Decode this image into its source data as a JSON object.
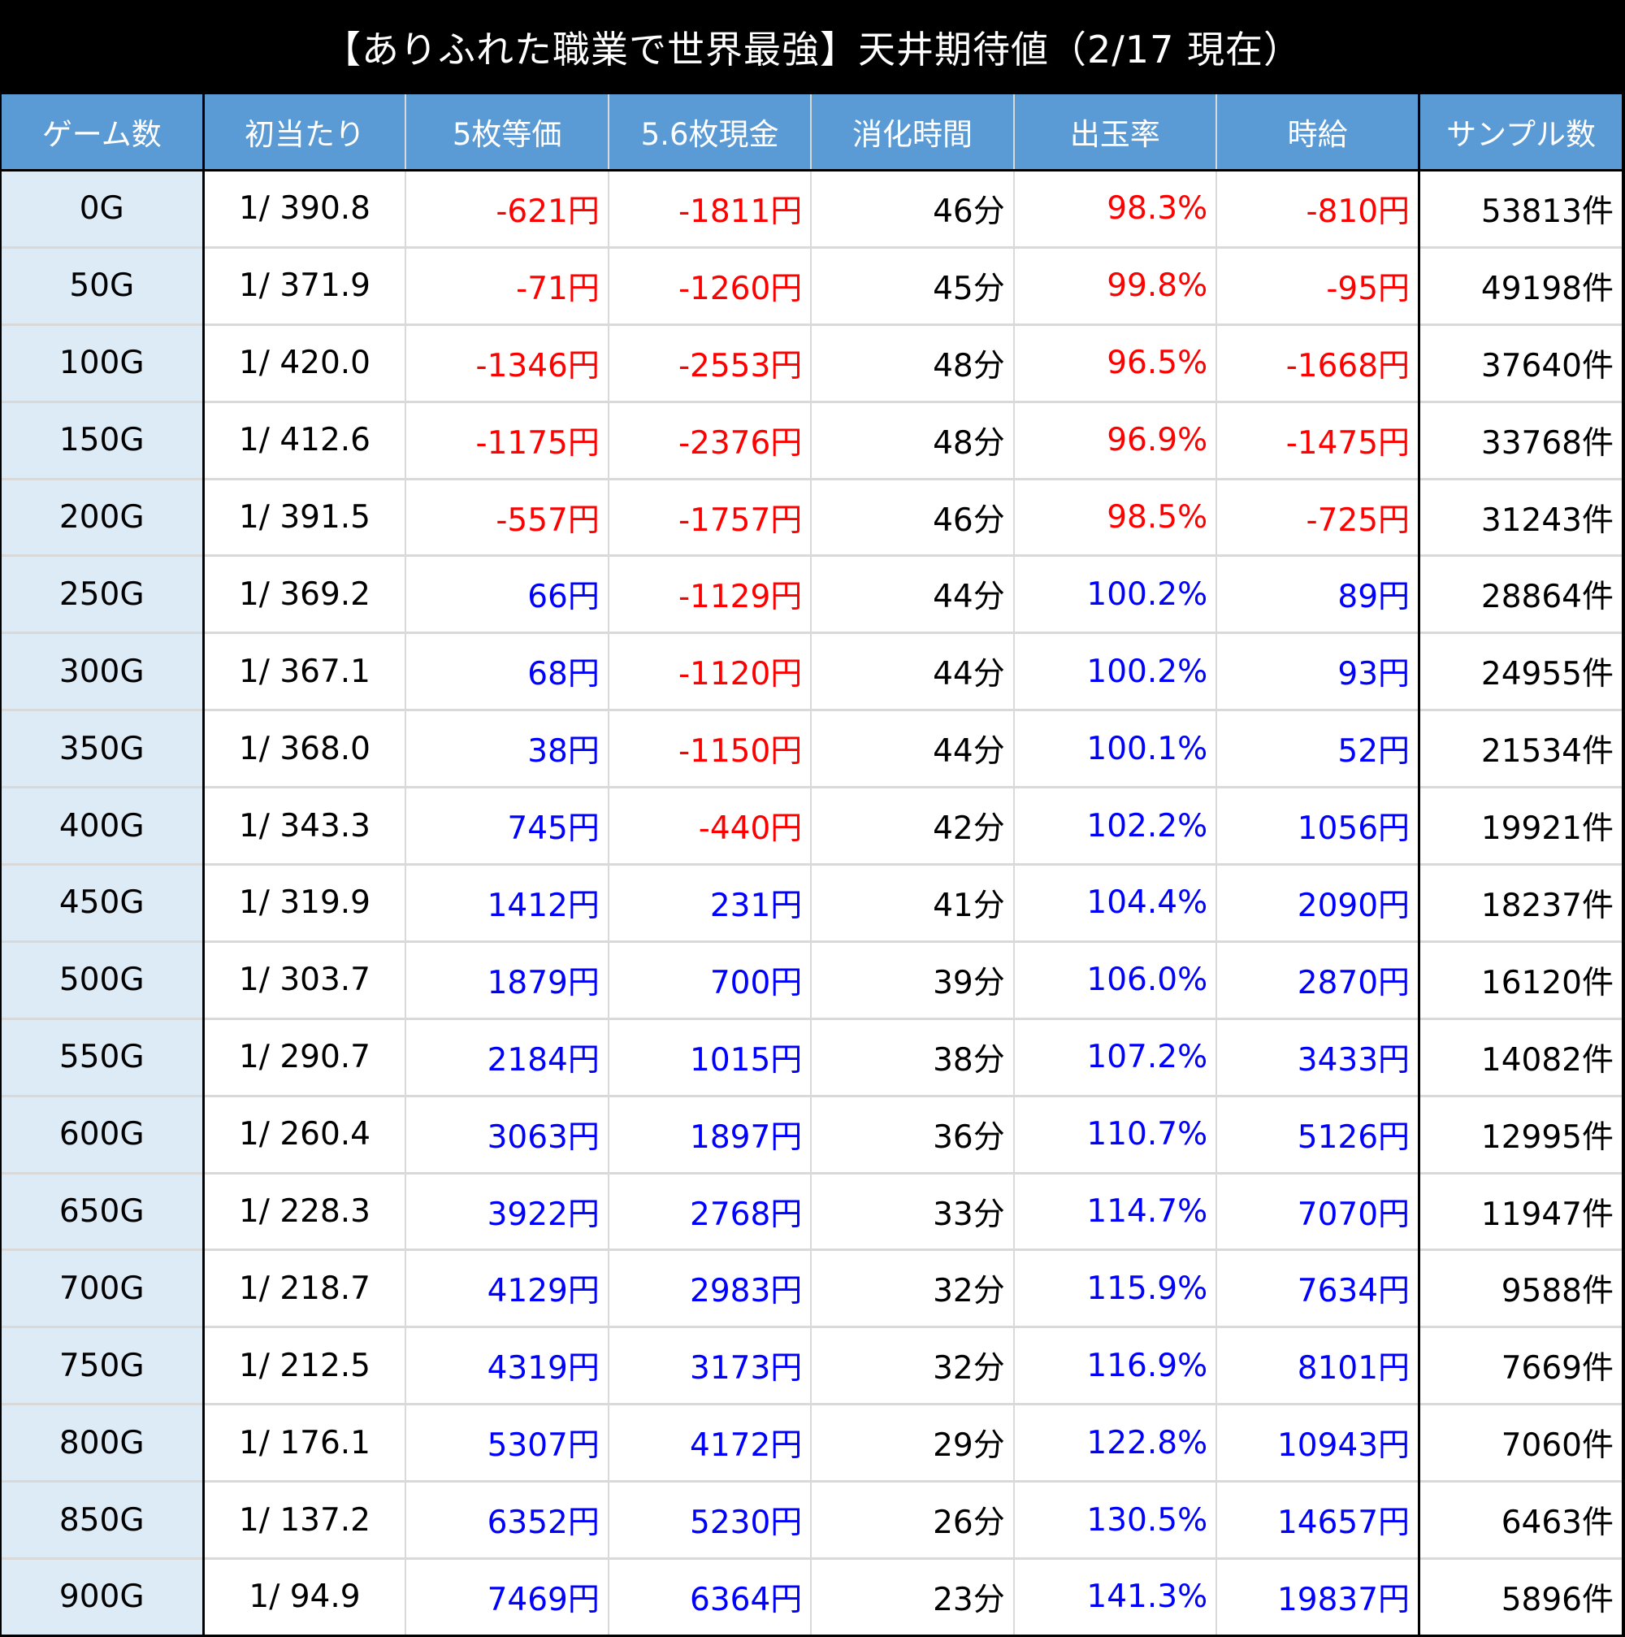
{
  "title": "【ありふれた職業で世界最強】天井期待値（2/17 現在）",
  "colors": {
    "header_bg": "#5b9bd5",
    "first_col_bg": "#ddebf7",
    "negative": "#ff0000",
    "positive": "#0000ff"
  },
  "table": {
    "headers": [
      "ゲーム数",
      "初当たり",
      "5枚等価",
      "5.6枚現金",
      "消化時間",
      "出玉率",
      "時給",
      "サンプル数"
    ],
    "rows": [
      {
        "game": "0G",
        "first_hit": "1/ 390.8",
        "eq5": "-621円",
        "cash56": "-1811円",
        "time": "46分",
        "payout": "98.3%",
        "hourly": "-810円",
        "samples": "53813件"
      },
      {
        "game": "50G",
        "first_hit": "1/ 371.9",
        "eq5": "-71円",
        "cash56": "-1260円",
        "time": "45分",
        "payout": "99.8%",
        "hourly": "-95円",
        "samples": "49198件"
      },
      {
        "game": "100G",
        "first_hit": "1/ 420.0",
        "eq5": "-1346円",
        "cash56": "-2553円",
        "time": "48分",
        "payout": "96.5%",
        "hourly": "-1668円",
        "samples": "37640件"
      },
      {
        "game": "150G",
        "first_hit": "1/ 412.6",
        "eq5": "-1175円",
        "cash56": "-2376円",
        "time": "48分",
        "payout": "96.9%",
        "hourly": "-1475円",
        "samples": "33768件"
      },
      {
        "game": "200G",
        "first_hit": "1/ 391.5",
        "eq5": "-557円",
        "cash56": "-1757円",
        "time": "46分",
        "payout": "98.5%",
        "hourly": "-725円",
        "samples": "31243件"
      },
      {
        "game": "250G",
        "first_hit": "1/ 369.2",
        "eq5": "66円",
        "cash56": "-1129円",
        "time": "44分",
        "payout": "100.2%",
        "hourly": "89円",
        "samples": "28864件"
      },
      {
        "game": "300G",
        "first_hit": "1/ 367.1",
        "eq5": "68円",
        "cash56": "-1120円",
        "time": "44分",
        "payout": "100.2%",
        "hourly": "93円",
        "samples": "24955件"
      },
      {
        "game": "350G",
        "first_hit": "1/ 368.0",
        "eq5": "38円",
        "cash56": "-1150円",
        "time": "44分",
        "payout": "100.1%",
        "hourly": "52円",
        "samples": "21534件"
      },
      {
        "game": "400G",
        "first_hit": "1/ 343.3",
        "eq5": "745円",
        "cash56": "-440円",
        "time": "42分",
        "payout": "102.2%",
        "hourly": "1056円",
        "samples": "19921件"
      },
      {
        "game": "450G",
        "first_hit": "1/ 319.9",
        "eq5": "1412円",
        "cash56": "231円",
        "time": "41分",
        "payout": "104.4%",
        "hourly": "2090円",
        "samples": "18237件"
      },
      {
        "game": "500G",
        "first_hit": "1/ 303.7",
        "eq5": "1879円",
        "cash56": "700円",
        "time": "39分",
        "payout": "106.0%",
        "hourly": "2870円",
        "samples": "16120件"
      },
      {
        "game": "550G",
        "first_hit": "1/ 290.7",
        "eq5": "2184円",
        "cash56": "1015円",
        "time": "38分",
        "payout": "107.2%",
        "hourly": "3433円",
        "samples": "14082件"
      },
      {
        "game": "600G",
        "first_hit": "1/ 260.4",
        "eq5": "3063円",
        "cash56": "1897円",
        "time": "36分",
        "payout": "110.7%",
        "hourly": "5126円",
        "samples": "12995件"
      },
      {
        "game": "650G",
        "first_hit": "1/ 228.3",
        "eq5": "3922円",
        "cash56": "2768円",
        "time": "33分",
        "payout": "114.7%",
        "hourly": "7070円",
        "samples": "11947件"
      },
      {
        "game": "700G",
        "first_hit": "1/ 218.7",
        "eq5": "4129円",
        "cash56": "2983円",
        "time": "32分",
        "payout": "115.9%",
        "hourly": "7634円",
        "samples": "9588件"
      },
      {
        "game": "750G",
        "first_hit": "1/ 212.5",
        "eq5": "4319円",
        "cash56": "3173円",
        "time": "32分",
        "payout": "116.9%",
        "hourly": "8101円",
        "samples": "7669件"
      },
      {
        "game": "800G",
        "first_hit": "1/ 176.1",
        "eq5": "5307円",
        "cash56": "4172円",
        "time": "29分",
        "payout": "122.8%",
        "hourly": "10943円",
        "samples": "7060件"
      },
      {
        "game": "850G",
        "first_hit": "1/ 137.2",
        "eq5": "6352円",
        "cash56": "5230円",
        "time": "26分",
        "payout": "130.5%",
        "hourly": "14657円",
        "samples": "6463件"
      },
      {
        "game": "900G",
        "first_hit": "1/ 94.9",
        "eq5": "7469円",
        "cash56": "6364円",
        "time": "23分",
        "payout": "141.3%",
        "hourly": "19837円",
        "samples": "5896件"
      }
    ]
  }
}
